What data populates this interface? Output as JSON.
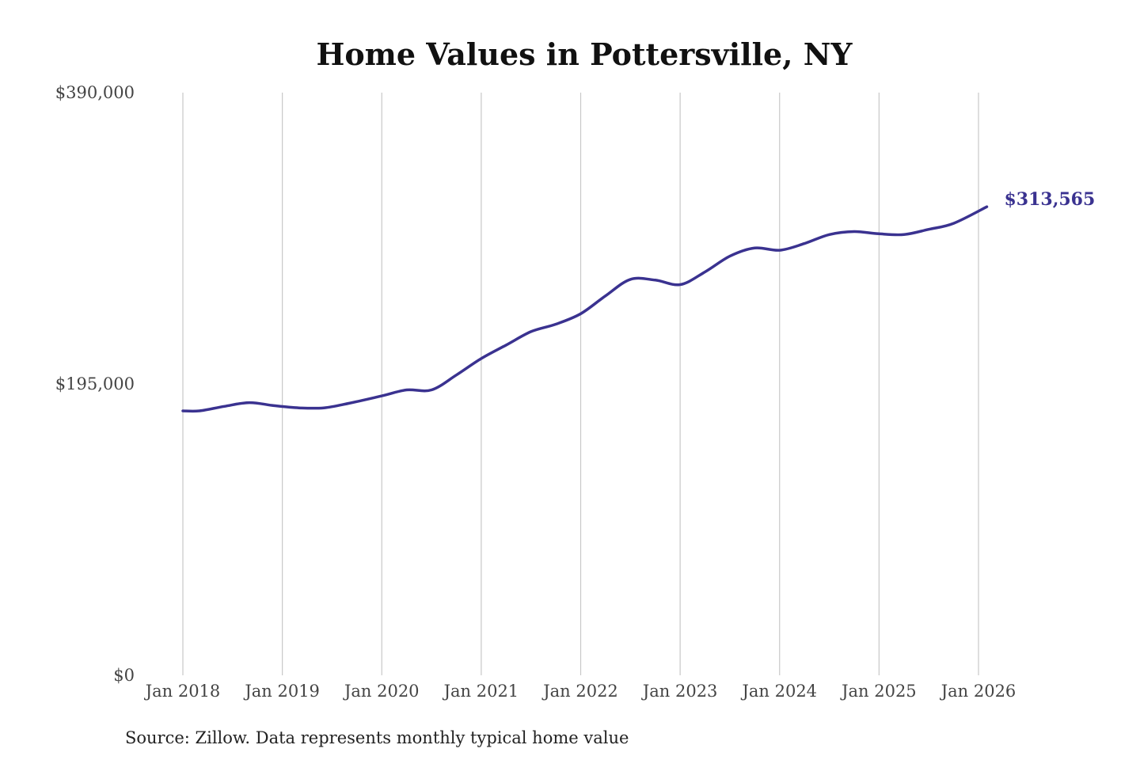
{
  "chart_data": {
    "type": "line",
    "title": "Home Values in Pottersville, NY",
    "xlabel": "",
    "ylabel": "",
    "x_ticks": [
      "Jan 2018",
      "Jan 2019",
      "Jan 2020",
      "Jan 2021",
      "Jan 2022",
      "Jan 2023",
      "Jan 2024",
      "Jan 2025",
      "Jan 2026"
    ],
    "y_ticks": [
      "$390,000",
      "$195,000",
      "$0"
    ],
    "y_tick_values": [
      390000,
      195000,
      0
    ],
    "ylim": [
      0,
      390000
    ],
    "xlim": [
      "2018-01",
      "2026-01"
    ],
    "grid": "vertical",
    "line_color": "#3a3290",
    "series": [
      {
        "points": [
          {
            "x": "2018-01",
            "y": 177000
          },
          {
            "x": "2018-03",
            "y": 177000
          },
          {
            "x": "2018-06",
            "y": 180000
          },
          {
            "x": "2018-09",
            "y": 182500
          },
          {
            "x": "2018-12",
            "y": 180500
          },
          {
            "x": "2019-03",
            "y": 179000
          },
          {
            "x": "2019-06",
            "y": 179000
          },
          {
            "x": "2019-09",
            "y": 182000
          },
          {
            "x": "2020-01",
            "y": 187000
          },
          {
            "x": "2020-04",
            "y": 191000
          },
          {
            "x": "2020-07",
            "y": 191000
          },
          {
            "x": "2020-10",
            "y": 201000
          },
          {
            "x": "2021-01",
            "y": 212000
          },
          {
            "x": "2021-04",
            "y": 221000
          },
          {
            "x": "2021-07",
            "y": 230000
          },
          {
            "x": "2021-10",
            "y": 235000
          },
          {
            "x": "2022-01",
            "y": 242000
          },
          {
            "x": "2022-04",
            "y": 254000
          },
          {
            "x": "2022-07",
            "y": 265000
          },
          {
            "x": "2022-10",
            "y": 264500
          },
          {
            "x": "2023-01",
            "y": 261500
          },
          {
            "x": "2023-04",
            "y": 270000
          },
          {
            "x": "2023-07",
            "y": 280500
          },
          {
            "x": "2023-10",
            "y": 286000
          },
          {
            "x": "2024-01",
            "y": 284500
          },
          {
            "x": "2024-04",
            "y": 289000
          },
          {
            "x": "2024-07",
            "y": 295000
          },
          {
            "x": "2024-10",
            "y": 297000
          },
          {
            "x": "2025-01",
            "y": 295500
          },
          {
            "x": "2025-04",
            "y": 295000
          },
          {
            "x": "2025-07",
            "y": 298500
          },
          {
            "x": "2025-10",
            "y": 302500
          },
          {
            "x": "2026-02",
            "y": 313565
          }
        ]
      }
    ],
    "end_label": "$313,565",
    "source": "Source: Zillow. Data represents monthly typical home value"
  }
}
